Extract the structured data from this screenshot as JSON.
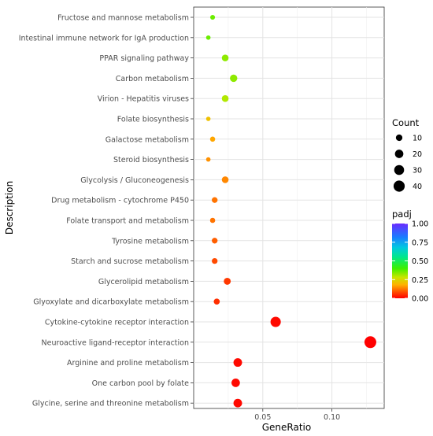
{
  "chart_data": {
    "type": "scatter",
    "xlabel": "GeneRatio",
    "ylabel": "Description",
    "xlim": [
      0.0,
      0.1378
    ],
    "x_ticks": [
      {
        "value": 0.05,
        "label": "0.05"
      },
      {
        "value": 0.1,
        "label": "0.10"
      }
    ],
    "grid": true,
    "points": [
      {
        "term": "Fructose and mannose metabolism",
        "gene_ratio": 0.0137,
        "count": 4,
        "padj": 0.36
      },
      {
        "term": "Intestinal immune network for IgA production",
        "gene_ratio": 0.0106,
        "count": 3,
        "padj": 0.36
      },
      {
        "term": "PPAR signaling pathway",
        "gene_ratio": 0.0228,
        "count": 11,
        "padj": 0.33
      },
      {
        "term": "Carbon metabolism",
        "gene_ratio": 0.0289,
        "count": 14,
        "padj": 0.33
      },
      {
        "term": "Virion - Hepatitis viruses",
        "gene_ratio": 0.0228,
        "count": 11,
        "padj": 0.3
      },
      {
        "term": "Folate biosynthesis",
        "gene_ratio": 0.0106,
        "count": 3,
        "padj": 0.21
      },
      {
        "term": "Galactose metabolism",
        "gene_ratio": 0.0137,
        "count": 5,
        "padj": 0.17
      },
      {
        "term": "Steroid biosynthesis",
        "gene_ratio": 0.0106,
        "count": 3,
        "padj": 0.15
      },
      {
        "term": "Glycolysis / Gluconeogenesis",
        "gene_ratio": 0.0228,
        "count": 11,
        "padj": 0.14
      },
      {
        "term": "Drug metabolism - cytochrome P450",
        "gene_ratio": 0.0152,
        "count": 7,
        "padj": 0.12
      },
      {
        "term": "Folate transport and metabolism",
        "gene_ratio": 0.0137,
        "count": 5,
        "padj": 0.12
      },
      {
        "term": "Tyrosine metabolism",
        "gene_ratio": 0.0152,
        "count": 7,
        "padj": 0.1
      },
      {
        "term": "Starch and sucrose metabolism",
        "gene_ratio": 0.0152,
        "count": 7,
        "padj": 0.08
      },
      {
        "term": "Glycerolipid metabolism",
        "gene_ratio": 0.0243,
        "count": 12,
        "padj": 0.06
      },
      {
        "term": "Glyoxylate and dicarboxylate metabolism",
        "gene_ratio": 0.0167,
        "count": 8,
        "padj": 0.05
      },
      {
        "term": "Cytokine-cytokine receptor interaction",
        "gene_ratio": 0.0593,
        "count": 33,
        "padj": 0.01
      },
      {
        "term": "Neuroactive ligand-receptor interaction",
        "gene_ratio": 0.1278,
        "count": 46,
        "padj": 0.0
      },
      {
        "term": "Arginine and proline metabolism",
        "gene_ratio": 0.0319,
        "count": 21,
        "padj": 0.01
      },
      {
        "term": "One carbon pool by folate",
        "gene_ratio": 0.0304,
        "count": 20,
        "padj": 0.01
      },
      {
        "term": "Glycine, serine and threonine metabolism",
        "gene_ratio": 0.0319,
        "count": 21,
        "padj": 0.01
      }
    ],
    "legend": {
      "size_title": "Count",
      "size_entries": [
        {
          "count": 10,
          "label": "10"
        },
        {
          "count": 20,
          "label": "20"
        },
        {
          "count": 30,
          "label": "30"
        },
        {
          "count": 40,
          "label": "40"
        }
      ],
      "color_title": "padj",
      "color_range": [
        0.0,
        1.0
      ],
      "color_ticks": [
        {
          "value": 1.0,
          "label": "1.00"
        },
        {
          "value": 0.75,
          "label": "0.75"
        },
        {
          "value": 0.5,
          "label": "0.50"
        },
        {
          "value": 0.25,
          "label": "0.25"
        },
        {
          "value": 0.0,
          "label": "0.00"
        }
      ],
      "placement": "right"
    }
  }
}
